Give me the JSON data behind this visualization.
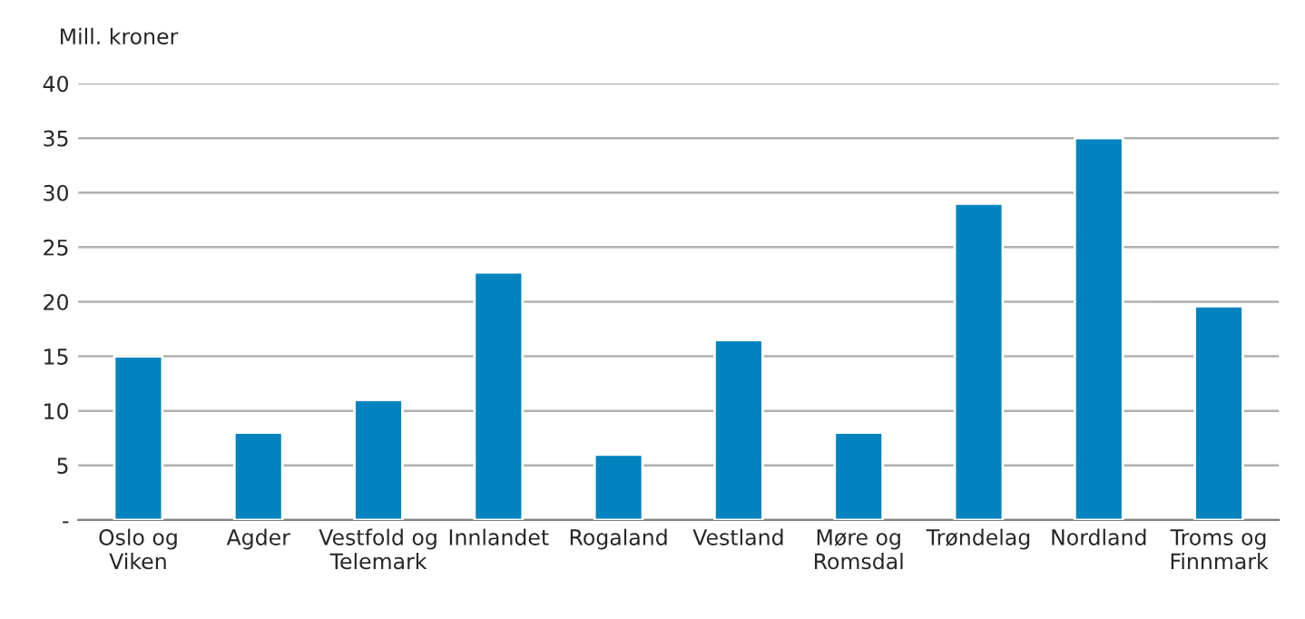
{
  "chart_data": {
    "type": "bar",
    "ylabel": "Mill. kroner",
    "categories": [
      "Oslo og\nViken",
      "Agder",
      "Vestfold og\nTelemark",
      "Innlandet",
      "Rogaland",
      "Vestland",
      "Møre og\nRomsdal",
      "Trøndelag",
      "Nordland",
      "Troms og\nFinnmark"
    ],
    "values": [
      15.0,
      8.0,
      11.0,
      22.7,
      6.0,
      16.5,
      8.0,
      29.0,
      35.0,
      19.6
    ],
    "color": "#0083bf",
    "ylim": [
      0,
      40
    ],
    "yticks": [
      {
        "value": 0,
        "label": "-"
      },
      5,
      10,
      15,
      20,
      25,
      30,
      35,
      40
    ],
    "grid": "y",
    "legend": false
  }
}
